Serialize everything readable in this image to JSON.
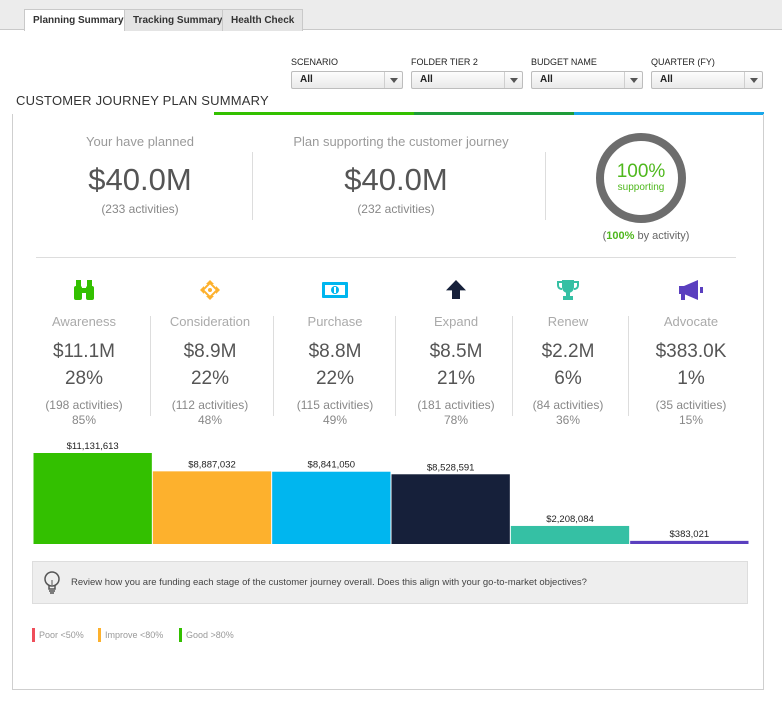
{
  "tabs": [
    {
      "label": "Planning Summary",
      "active": true
    },
    {
      "label": "Tracking Summary",
      "active": false
    },
    {
      "label": "Health Check",
      "active": false
    }
  ],
  "filters": [
    {
      "label": "SCENARIO",
      "value": "All"
    },
    {
      "label": "FOLDER TIER 2",
      "value": "All"
    },
    {
      "label": "BUDGET NAME",
      "value": "All"
    },
    {
      "label": "QUARTER (FY)",
      "value": "All"
    }
  ],
  "page_title": "CUSTOMER JOURNEY PLAN SUMMARY",
  "summary": {
    "planned_label": "Your have planned",
    "planned_value": "$40.0M",
    "planned_count": "(233 activities)",
    "supporting_label": "Plan supporting the customer journey",
    "supporting_value": "$40.0M",
    "supporting_count": "(232 activities)",
    "ring_percent": "100%",
    "ring_fraction": 1.0,
    "ring_sublabel": "supporting",
    "by_activity_open": "(",
    "by_activity_pct": "100%",
    "by_activity_rest": " by activity)"
  },
  "stages": [
    {
      "name": "Awareness",
      "icon": "binoculars-icon",
      "amount": "$11.1M",
      "percent": "28%",
      "activities": "(198 activities)",
      "activity_pct": "85%",
      "color": "#33c000"
    },
    {
      "name": "Consideration",
      "icon": "move-arrows-icon",
      "amount": "$8.9M",
      "percent": "22%",
      "activities": "(112 activities)",
      "activity_pct": "48%",
      "color": "#fdb12d"
    },
    {
      "name": "Purchase",
      "icon": "money-icon",
      "amount": "$8.8M",
      "percent": "22%",
      "activities": "(115 activities)",
      "activity_pct": "49%",
      "color": "#00b6ef"
    },
    {
      "name": "Expand",
      "icon": "arrow-up-icon",
      "amount": "$8.5M",
      "percent": "21%",
      "activities": "(181 activities)",
      "activity_pct": "78%",
      "color": "#16203a"
    },
    {
      "name": "Renew",
      "icon": "trophy-icon",
      "amount": "$2.2M",
      "percent": "6%",
      "activities": "(84 activities)",
      "activity_pct": "36%",
      "color": "#35c0a4"
    },
    {
      "name": "Advocate",
      "icon": "megaphone-icon",
      "amount": "$383.0K",
      "percent": "1%",
      "activities": "(35 activities)",
      "activity_pct": "15%",
      "color": "#5a3fbf"
    }
  ],
  "chart_data": {
    "type": "bar",
    "categories": [
      "Awareness",
      "Consideration",
      "Purchase",
      "Expand",
      "Renew",
      "Advocate"
    ],
    "values": [
      11131613,
      8887032,
      8841050,
      8528591,
      2208084,
      383021
    ],
    "value_labels": [
      "$11,131,613",
      "$8,887,032",
      "$8,841,050",
      "$8,528,591",
      "$2,208,084",
      "$383,021"
    ],
    "colors": [
      "#33c000",
      "#fdb12d",
      "#00b6ef",
      "#16203a",
      "#35c0a4",
      "#5a3fbf"
    ],
    "title": "",
    "xlabel": "",
    "ylabel": "",
    "ylim": [
      0,
      11131613
    ],
    "grid": false
  },
  "tip_text": "Review how you are funding each stage of the customer journey overall. Does this align with your go-to-market objectives?",
  "legend": [
    {
      "label": "Poor <50%",
      "color": "#ef4e5a"
    },
    {
      "label": "Improve <80%",
      "color": "#fdb12d"
    },
    {
      "label": "Good >80%",
      "color": "#33c000"
    }
  ],
  "colors": {
    "accent_green": "#4fb81d",
    "ring_gray": "#6d6d6d",
    "rule_blue": "#19a7ea"
  }
}
